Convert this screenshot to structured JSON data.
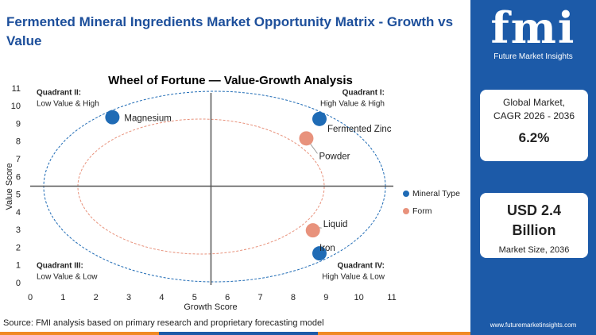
{
  "header": {
    "title": "Fermented Mineral Ingredients Market Opportunity Matrix - Growth vs Value"
  },
  "logo": {
    "mark": "fmi",
    "name": "Future Market Insights"
  },
  "stats": [
    {
      "label": "Global Market, CAGR 2026 - 2036",
      "value": "6.2%"
    },
    {
      "value": "USD 2.4 Billion",
      "label": "Market Size, 2036"
    }
  ],
  "footer": {
    "source": "Source: FMI analysis based on primary research and proprietary forecasting model",
    "url": "www.futuremarketinsights.com"
  },
  "chart_data": {
    "type": "scatter",
    "title": "Wheel of Fortune — Value-Growth Analysis",
    "x_label": "Growth Score",
    "y_label": "Value Score",
    "xlim": [
      0,
      11
    ],
    "ylim": [
      0,
      11
    ],
    "xticks": [
      0,
      1,
      2,
      3,
      4,
      5,
      6,
      7,
      8,
      9,
      10,
      11
    ],
    "yticks": [
      0,
      1,
      2,
      3,
      4,
      5,
      6,
      7,
      8,
      9,
      10,
      11
    ],
    "series": [
      {
        "name": "Mineral Type",
        "color": "#1f6bb5",
        "x": [
          2.5,
          8.8,
          8.8
        ],
        "values": [
          9.4,
          9.3,
          1.7
        ],
        "labels": [
          "Magnesium",
          "Fermented Zinc",
          "Iron"
        ]
      },
      {
        "name": "Form",
        "color": "#e8927c",
        "x": [
          8.4,
          8.6
        ],
        "values": [
          8.2,
          3.0
        ],
        "labels": [
          "Powder",
          "Liquid"
        ]
      }
    ],
    "quadrants": [
      {
        "title": "Quadrant II:",
        "subtitle": "Low Value & High"
      },
      {
        "title": "Quadrant I:",
        "subtitle": "High Value & High"
      },
      {
        "title": "Quadrant III:",
        "subtitle": "Low Value & Low"
      },
      {
        "title": "Quadrant IV:",
        "subtitle": "High Value & Low"
      }
    ]
  }
}
